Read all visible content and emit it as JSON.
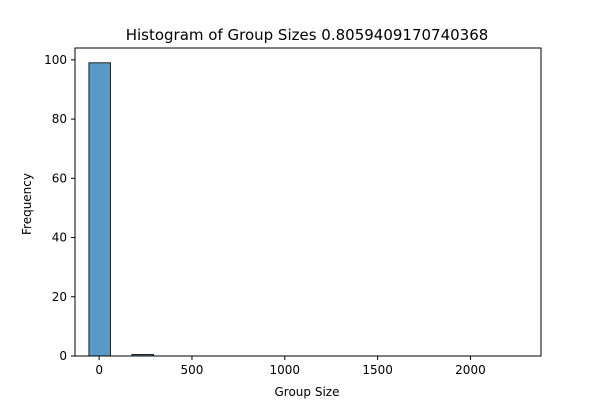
{
  "chart_data": {
    "type": "bar",
    "title": "Histogram of Group Sizes 0.8059409170740368",
    "xlabel": "Group Size",
    "ylabel": "Frequency",
    "xlim": [
      -130,
      2380
    ],
    "ylim": [
      0,
      104
    ],
    "x_ticks": [
      0,
      500,
      1000,
      1500,
      2000
    ],
    "y_ticks": [
      0,
      20,
      40,
      60,
      80,
      100
    ],
    "bin_edges": [
      -55,
      61,
      177,
      293,
      409,
      525,
      641,
      757,
      873,
      989,
      1105,
      1221,
      1337,
      1453,
      1569,
      1685,
      1801,
      1917,
      2033,
      2149,
      2265,
      2295
    ],
    "values": [
      99,
      0,
      0.5,
      0,
      0,
      0,
      0,
      0,
      0,
      0,
      0,
      0,
      0,
      0,
      0,
      0,
      0,
      0,
      0,
      0,
      0
    ],
    "bar_color": "#5799c7",
    "edge_color": "#1f1f1f",
    "grid": false
  }
}
